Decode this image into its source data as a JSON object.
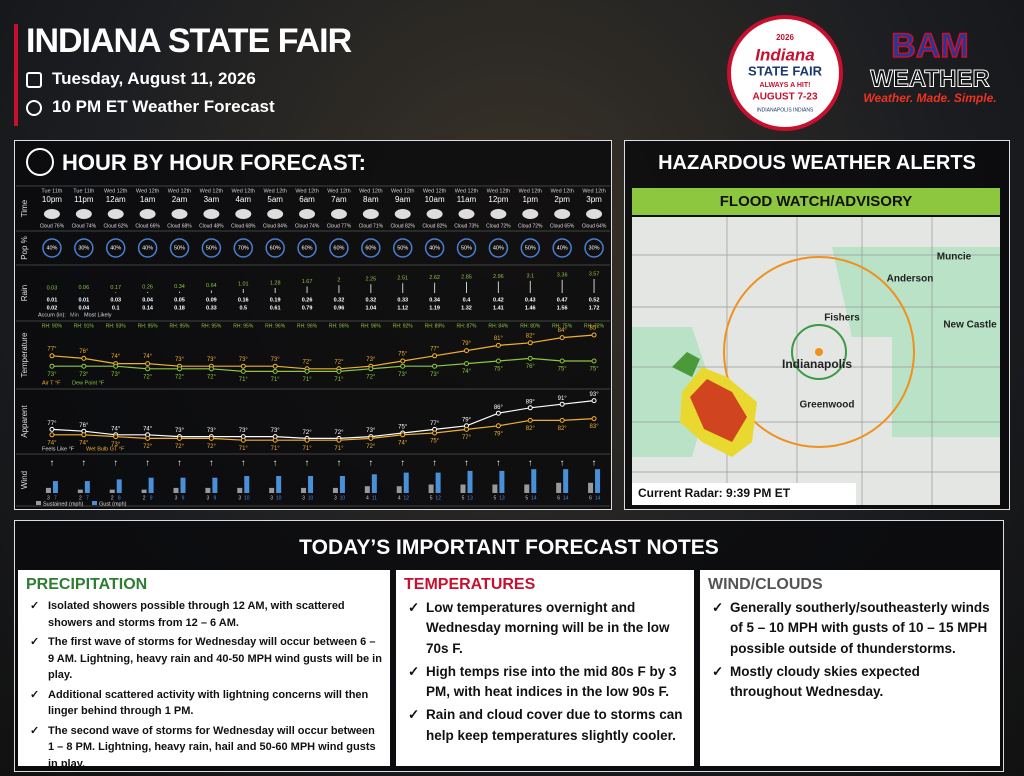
{
  "header": {
    "title": "INDIANA STATE FAIR",
    "date": "Tuesday, August 11, 2026",
    "time": "10 PM ET Weather Forecast"
  },
  "logos": {
    "fair": {
      "year": "2026",
      "name": "Indiana",
      "sub": "STATE FAIR",
      "tag": "ALWAYS A HIT!",
      "dates": "AUGUST 7-23",
      "sponsor": "INDIANAPOLIS INDIANS"
    },
    "bam": {
      "name": "BAM",
      "sub": "WEATHER",
      "tagline": "Weather. Made. Simple."
    }
  },
  "hourly": {
    "title": "HOUR BY HOUR FORECAST:",
    "row_labels": [
      "Time",
      "Pop %",
      "Rain",
      "Temperature",
      "Apparent",
      "Wind"
    ],
    "days": [
      "Tue 11th",
      "Tue 11th",
      "Wed 12th",
      "Wed 12th",
      "Wed 12th",
      "Wed 12th",
      "Wed 12th",
      "Wed 12th",
      "Wed 12th",
      "Wed 12th",
      "Wed 12th",
      "Wed 12th",
      "Wed 12th",
      "Wed 12th",
      "Wed 12th",
      "Wed 12th",
      "Wed 12th",
      "Wed 12th"
    ],
    "hours": [
      "10pm",
      "11pm",
      "12am",
      "1am",
      "2am",
      "3am",
      "4am",
      "5am",
      "6am",
      "7am",
      "8am",
      "9am",
      "10am",
      "11am",
      "12pm",
      "1pm",
      "2pm",
      "3pm"
    ],
    "cloud": [
      "Cloud 76%",
      "Cloud 74%",
      "Cloud 62%",
      "Cloud 66%",
      "Cloud 68%",
      "Cloud 48%",
      "Cloud 68%",
      "Cloud 84%",
      "Cloud 74%",
      "Cloud 77%",
      "Cloud 71%",
      "Cloud 82%",
      "Cloud 82%",
      "Cloud 73%",
      "Cloud 72%",
      "Cloud 72%",
      "Cloud 65%",
      "Cloud 64%"
    ],
    "pop": [
      "40%",
      "30%",
      "40%",
      "40%",
      "50%",
      "50%",
      "70%",
      "60%",
      "60%",
      "60%",
      "60%",
      "50%",
      "40%",
      "50%",
      "40%",
      "50%",
      "40%",
      "30%"
    ],
    "rain_total": [
      0.03,
      0.06,
      0.17,
      0.26,
      0.34,
      0.64,
      1.01,
      1.28,
      1.67,
      2,
      2.25,
      2.51,
      2.62,
      2.85,
      2.96,
      3.1,
      3.36,
      3.57
    ],
    "rain_min": [
      0.01,
      0.01,
      0.03,
      0.04,
      0.05,
      0.09,
      0.16,
      0.19,
      0.26,
      0.32,
      0.32,
      0.33,
      0.34,
      0.4,
      0.42,
      0.43,
      0.47,
      0.52
    ],
    "rain_likely": [
      0.02,
      0.04,
      0.1,
      0.14,
      0.18,
      0.33,
      0.5,
      0.61,
      0.79,
      0.96,
      1.04,
      1.12,
      1.19,
      1.32,
      1.41,
      1.46,
      1.56,
      1.72
    ],
    "rain_legend": [
      "Accum (in):",
      "Min",
      "Most Likely"
    ],
    "rh": [
      "RH: 90%",
      "RH: 91%",
      "RH: 93%",
      "RH: 95%",
      "RH: 95%",
      "RH: 95%",
      "RH: 95%",
      "RH: 96%",
      "RH: 96%",
      "RH: 96%",
      "RH: 96%",
      "RH: 92%",
      "RH: 89%",
      "RH: 87%",
      "RH: 84%",
      "RH: 80%",
      "RH: 75%",
      "RH: 72%"
    ],
    "air": [
      "77°",
      "76°",
      "74°",
      "74°",
      "73°",
      "73°",
      "73°",
      "73°",
      "72°",
      "72°",
      "73°",
      "75°",
      "77°",
      "79°",
      "81°",
      "82°",
      "84°",
      "85°"
    ],
    "dew": [
      "73°",
      "73°",
      "73°",
      "72°",
      "72°",
      "72°",
      "71°",
      "71°",
      "71°",
      "71°",
      "72°",
      "73°",
      "73°",
      "74°",
      "75°",
      "76°",
      "75°",
      "75°"
    ],
    "temp_legend": [
      "Air T °F",
      "Dew Point °F"
    ],
    "feels": [
      "77°",
      "76°",
      "74°",
      "74°",
      "73°",
      "73°",
      "73°",
      "73°",
      "72°",
      "72°",
      "73°",
      "75°",
      "77°",
      "79°",
      "86°",
      "89°",
      "91°",
      "93°"
    ],
    "wetbulb": [
      "74°",
      "74°",
      "73°",
      "72°",
      "72°",
      "72°",
      "71°",
      "71°",
      "71°",
      "71°",
      "72°",
      "74°",
      "75°",
      "77°",
      "79°",
      "82°",
      "82°",
      "83°"
    ],
    "apparent_legend": [
      "Feels Like °F",
      "Wet Bulb GT °F"
    ],
    "sustained": [
      3,
      2,
      2,
      2,
      3,
      3,
      3,
      3,
      3,
      3,
      4,
      4,
      5,
      5,
      5,
      5,
      6,
      6
    ],
    "gust": [
      7,
      7,
      8,
      9,
      9,
      9,
      10,
      10,
      10,
      10,
      11,
      12,
      12,
      13,
      13,
      14,
      14,
      14
    ],
    "wind_legend": [
      "Sustained (mph)",
      "Gust (mph)"
    ]
  },
  "alerts": {
    "title": "HAZARDOUS WEATHER ALERTS",
    "banner": "FLOOD WATCH/ADVISORY",
    "cities": [
      "Muncie",
      "Anderson",
      "Fishers",
      "New Castle",
      "Indianapolis",
      "Greenwood"
    ],
    "radar": "Current Radar: 9:39 PM ET"
  },
  "notes": {
    "title": "TODAY’S IMPORTANT FORECAST NOTES",
    "sections": [
      {
        "heading": "PRECIPITATION",
        "items": [
          "Isolated showers possible through 12 AM, with scattered showers and storms from 12 – 6 AM.",
          "The first wave of storms for Wednesday will occur between 6 – 9 AM. Lightning, heavy rain and 40-50 MPH wind gusts will be in play.",
          "Additional scattered activity with lightning concerns will then linger behind through 1 PM.",
          "The second wave of storms for Wednesday will occur between 1 – 8 PM. Lightning, heavy rain, hail and 50-60 MPH wind gusts in play."
        ]
      },
      {
        "heading": "TEMPERATURES",
        "items": [
          "Low temperatures overnight and Wednesday morning will be in the low 70s F.",
          "High temps rise into the mid 80s F by 3 PM, with heat indices in the low 90s F.",
          "Rain and cloud cover due to storms can help keep temperatures slightly cooler."
        ]
      },
      {
        "heading": "WIND/CLOUDS",
        "items": [
          "Generally southerly/southeasterly winds of 5 – 10 MPH with gusts of 10 – 15 MPH possible outside of thunderstorms.",
          "Mostly cloudy skies expected throughout Wednesday."
        ]
      }
    ]
  }
}
